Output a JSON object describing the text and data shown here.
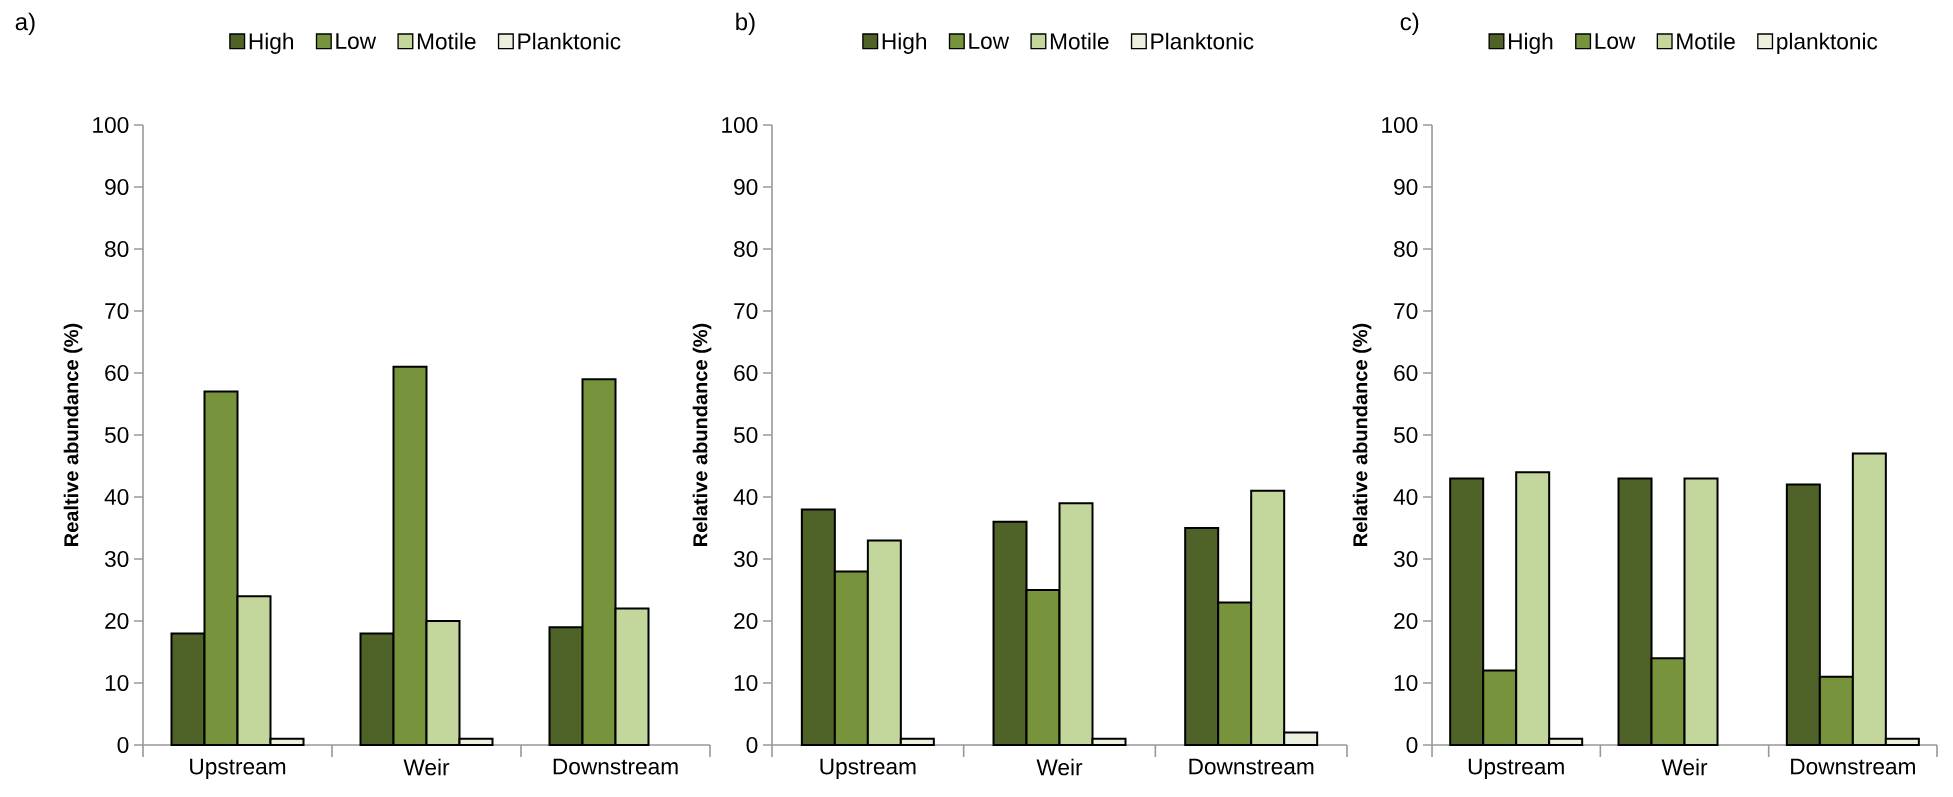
{
  "chart_data": [
    {
      "type": "bar",
      "title": "a)",
      "ylabel": "Realtive abundance (%)",
      "categories": [
        "Upstream",
        "Weir",
        "Downstream"
      ],
      "ylim": [
        0,
        100
      ],
      "yticks": [
        0,
        10,
        20,
        30,
        40,
        50,
        60,
        70,
        80,
        90,
        100
      ],
      "legend": "top",
      "grid": false,
      "series": [
        {
          "name": "High",
          "color": "#4f6228",
          "values": [
            18,
            18,
            19
          ]
        },
        {
          "name": "Low",
          "color": "#77933c",
          "values": [
            57,
            61,
            59
          ]
        },
        {
          "name": "Motile",
          "color": "#c3d69b",
          "values": [
            24,
            20,
            22
          ]
        },
        {
          "name": "Planktonic",
          "color": "#ebf1de",
          "values": [
            1,
            1,
            null
          ]
        }
      ]
    },
    {
      "type": "bar",
      "title": "b)",
      "ylabel": "Relative abundance (%)",
      "categories": [
        "Upstream",
        "Weir",
        "Downstream"
      ],
      "ylim": [
        0,
        100
      ],
      "yticks": [
        0,
        10,
        20,
        30,
        40,
        50,
        60,
        70,
        80,
        90,
        100
      ],
      "legend": "top",
      "grid": false,
      "series": [
        {
          "name": "High",
          "color": "#4f6228",
          "values": [
            38,
            36,
            35
          ]
        },
        {
          "name": "Low",
          "color": "#77933c",
          "values": [
            28,
            25,
            23
          ]
        },
        {
          "name": "Motile",
          "color": "#c3d69b",
          "values": [
            33,
            39,
            41
          ]
        },
        {
          "name": "Planktonic",
          "color": "#ebf1de",
          "values": [
            1,
            1,
            2
          ]
        }
      ]
    },
    {
      "type": "bar",
      "title": "c)",
      "ylabel": "Relative abundance (%)",
      "categories": [
        "Upstream",
        "Weir",
        "Downstream"
      ],
      "ylim": [
        0,
        100
      ],
      "yticks": [
        0,
        10,
        20,
        30,
        40,
        50,
        60,
        70,
        80,
        90,
        100
      ],
      "legend": "top",
      "grid": false,
      "series": [
        {
          "name": "High",
          "color": "#4f6228",
          "values": [
            43,
            43,
            42
          ]
        },
        {
          "name": "Low",
          "color": "#77933c",
          "values": [
            12,
            14,
            11
          ]
        },
        {
          "name": "Motile",
          "color": "#c3d69b",
          "values": [
            44,
            43,
            47
          ]
        },
        {
          "name": "planktonic",
          "color": "#ebf1de",
          "values": [
            1,
            null,
            1
          ]
        }
      ]
    }
  ]
}
